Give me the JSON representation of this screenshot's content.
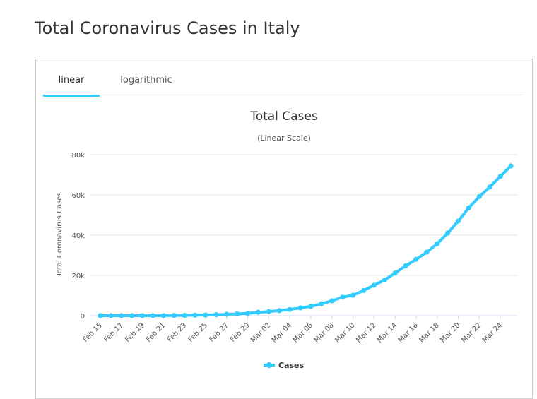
{
  "page": {
    "title": "Total Coronavirus Cases in Italy"
  },
  "tabs": [
    {
      "label": "linear",
      "active": true
    },
    {
      "label": "logarithmic",
      "active": false
    }
  ],
  "colors": {
    "series": "#33ccff",
    "accent": "#33ccff"
  },
  "chart_data": {
    "type": "line",
    "title": "Total Cases",
    "subtitle": "(Linear Scale)",
    "xlabel": "",
    "ylabel": "Total Coronavirus Cases",
    "ylim": [
      0,
      80000
    ],
    "yticks": [
      0,
      20000,
      40000,
      60000,
      80000
    ],
    "ytick_labels": [
      "0",
      "20k",
      "40k",
      "60k",
      "80k"
    ],
    "grid": true,
    "legend": "bottom-center",
    "x": [
      "Feb 15",
      "Feb 16",
      "Feb 17",
      "Feb 18",
      "Feb 19",
      "Feb 20",
      "Feb 21",
      "Feb 22",
      "Feb 23",
      "Feb 24",
      "Feb 25",
      "Feb 26",
      "Feb 27",
      "Feb 28",
      "Feb 29",
      "Mar 01",
      "Mar 02",
      "Mar 03",
      "Mar 04",
      "Mar 05",
      "Mar 06",
      "Mar 07",
      "Mar 08",
      "Mar 09",
      "Mar 10",
      "Mar 11",
      "Mar 12",
      "Mar 13",
      "Mar 14",
      "Mar 15",
      "Mar 16",
      "Mar 17",
      "Mar 18",
      "Mar 19",
      "Mar 20",
      "Mar 21",
      "Mar 22",
      "Mar 23",
      "Mar 24",
      "Mar 25"
    ],
    "x_tick_labels": [
      "Feb 15",
      "Feb 17",
      "Feb 19",
      "Feb 21",
      "Feb 23",
      "Feb 25",
      "Feb 27",
      "Feb 29",
      "Mar 02",
      "Mar 04",
      "Mar 06",
      "Mar 08",
      "Mar 10",
      "Mar 12",
      "Mar 14",
      "Mar 16",
      "Mar 18",
      "Mar 20",
      "Mar 22",
      "Mar 24"
    ],
    "series": [
      {
        "name": "Cases",
        "values": [
          3,
          3,
          3,
          3,
          3,
          3,
          20,
          79,
          157,
          229,
          323,
          470,
          655,
          889,
          1128,
          1694,
          2036,
          2502,
          3089,
          3858,
          4636,
          5883,
          7375,
          9172,
          10149,
          12462,
          15113,
          17660,
          21157,
          24747,
          27980,
          31506,
          35713,
          41035,
          47021,
          53578,
          59138,
          63927,
          69176,
          74386
        ]
      }
    ]
  }
}
